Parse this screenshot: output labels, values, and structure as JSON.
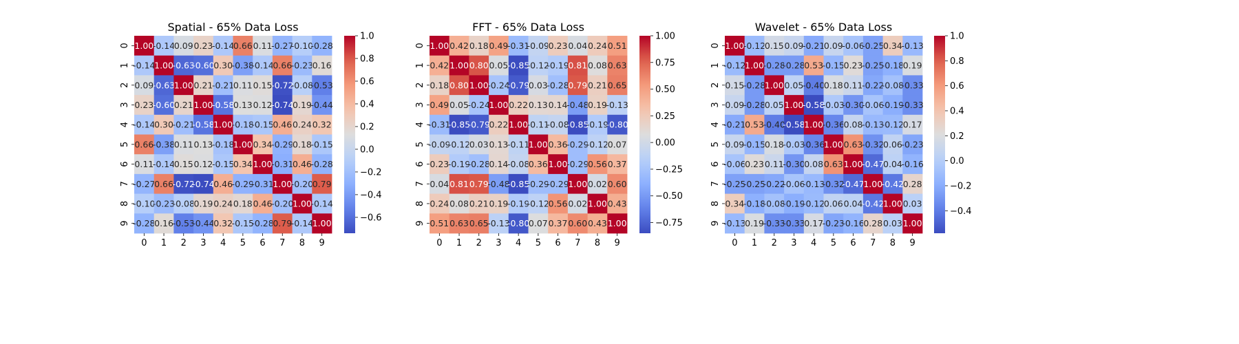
{
  "chart_data": [
    {
      "type": "heatmap",
      "title": "Spatial - 65% Data Loss",
      "x_categories": [
        "0",
        "1",
        "2",
        "3",
        "4",
        "5",
        "6",
        "7",
        "8",
        "9"
      ],
      "y_categories": [
        "0",
        "1",
        "2",
        "3",
        "4",
        "5",
        "6",
        "7",
        "8",
        "9"
      ],
      "values": [
        [
          1.0,
          -0.14,
          0.09,
          0.23,
          -0.14,
          0.66,
          0.11,
          -0.27,
          -0.1,
          -0.28
        ],
        [
          -0.14,
          1.0,
          -0.63,
          -0.6,
          0.3,
          -0.38,
          -0.14,
          0.66,
          -0.23,
          0.16
        ],
        [
          0.09,
          -0.63,
          1.0,
          0.21,
          -0.21,
          0.11,
          0.15,
          -0.72,
          -0.08,
          -0.53
        ],
        [
          0.23,
          -0.6,
          0.21,
          1.0,
          -0.58,
          0.13,
          0.12,
          -0.74,
          0.19,
          -0.44
        ],
        [
          -0.14,
          0.3,
          -0.21,
          -0.58,
          1.0,
          -0.18,
          -0.15,
          0.46,
          0.24,
          0.32
        ],
        [
          0.66,
          -0.38,
          0.11,
          0.13,
          -0.18,
          1.0,
          0.34,
          -0.29,
          0.18,
          -0.15
        ],
        [
          0.11,
          -0.14,
          0.15,
          0.12,
          -0.15,
          0.34,
          1.0,
          -0.31,
          0.46,
          -0.28
        ],
        [
          -0.27,
          0.66,
          -0.72,
          -0.74,
          0.46,
          -0.29,
          -0.31,
          1.0,
          -0.2,
          0.79
        ],
        [
          -0.1,
          -0.23,
          -0.08,
          0.19,
          0.24,
          0.18,
          0.46,
          -0.2,
          1.0,
          -0.14
        ],
        [
          -0.28,
          0.16,
          -0.53,
          -0.44,
          0.32,
          -0.15,
          -0.28,
          0.79,
          -0.14,
          1.0
        ]
      ],
      "colorscale": "coolwarm",
      "vmin": -0.74,
      "vmax": 1.0,
      "colorbar_ticks": [
        -0.6,
        -0.4,
        -0.2,
        0.0,
        0.2,
        0.4,
        0.6,
        0.8,
        1.0
      ],
      "colorbar_tick_labels": [
        "−0.6",
        "−0.4",
        "−0.2",
        "0.0",
        "0.2",
        "0.4",
        "0.6",
        "0.8",
        "1.0"
      ]
    },
    {
      "type": "heatmap",
      "title": "FFT - 65% Data Loss",
      "x_categories": [
        "0",
        "1",
        "2",
        "3",
        "4",
        "5",
        "6",
        "7",
        "8",
        "9"
      ],
      "y_categories": [
        "0",
        "1",
        "2",
        "3",
        "4",
        "5",
        "6",
        "7",
        "8",
        "9"
      ],
      "values": [
        [
          1.0,
          0.42,
          0.18,
          0.49,
          -0.31,
          -0.09,
          0.23,
          0.04,
          0.24,
          0.51
        ],
        [
          0.42,
          1.0,
          0.8,
          0.05,
          -0.85,
          -0.12,
          -0.19,
          0.81,
          0.08,
          0.63
        ],
        [
          0.18,
          0.8,
          1.0,
          -0.24,
          -0.79,
          0.03,
          -0.28,
          0.79,
          0.21,
          0.65
        ],
        [
          0.49,
          0.05,
          -0.24,
          1.0,
          0.22,
          0.13,
          0.14,
          -0.48,
          0.19,
          -0.13
        ],
        [
          -0.31,
          -0.85,
          -0.79,
          0.22,
          1.0,
          -0.11,
          -0.08,
          -0.85,
          -0.19,
          -0.8
        ],
        [
          -0.09,
          -0.12,
          0.03,
          0.13,
          -0.11,
          1.0,
          0.36,
          -0.29,
          -0.12,
          0.07
        ],
        [
          0.23,
          -0.19,
          -0.28,
          0.14,
          -0.08,
          0.36,
          1.0,
          -0.29,
          0.56,
          0.37
        ],
        [
          0.04,
          0.81,
          0.79,
          -0.48,
          -0.85,
          -0.29,
          -0.29,
          1.0,
          0.02,
          0.6
        ],
        [
          0.24,
          0.08,
          0.21,
          0.19,
          -0.19,
          -0.12,
          0.56,
          0.02,
          1.0,
          0.43
        ],
        [
          0.51,
          0.63,
          0.65,
          -0.13,
          -0.8,
          0.07,
          0.37,
          0.6,
          0.43,
          1.0
        ]
      ],
      "colorscale": "coolwarm",
      "vmin": -0.85,
      "vmax": 1.0,
      "colorbar_ticks": [
        -0.75,
        -0.5,
        -0.25,
        0.0,
        0.25,
        0.5,
        0.75,
        1.0
      ],
      "colorbar_tick_labels": [
        "−0.75",
        "−0.50",
        "−0.25",
        "0.00",
        "0.25",
        "0.50",
        "0.75",
        "1.00"
      ]
    },
    {
      "type": "heatmap",
      "title": "Wavelet - 65% Data Loss",
      "x_categories": [
        "0",
        "1",
        "2",
        "3",
        "4",
        "5",
        "6",
        "7",
        "8",
        "9"
      ],
      "y_categories": [
        "0",
        "1",
        "2",
        "3",
        "4",
        "5",
        "6",
        "7",
        "8",
        "9"
      ],
      "values": [
        [
          1.0,
          -0.12,
          0.15,
          0.09,
          -0.21,
          0.09,
          -0.06,
          -0.25,
          0.34,
          -0.13
        ],
        [
          -0.12,
          1.0,
          -0.28,
          -0.28,
          0.53,
          -0.15,
          0.23,
          -0.25,
          -0.18,
          0.19
        ],
        [
          0.15,
          -0.28,
          1.0,
          0.05,
          -0.4,
          0.18,
          0.11,
          -0.22,
          -0.08,
          -0.33
        ],
        [
          0.09,
          -0.28,
          0.05,
          1.0,
          -0.58,
          -0.03,
          -0.3,
          -0.06,
          -0.19,
          -0.33
        ],
        [
          -0.21,
          0.53,
          -0.4,
          -0.58,
          1.0,
          -0.36,
          0.08,
          -0.13,
          -0.12,
          0.17
        ],
        [
          0.09,
          -0.15,
          0.18,
          -0.03,
          -0.36,
          1.0,
          0.63,
          -0.32,
          0.06,
          -0.23
        ],
        [
          -0.06,
          0.23,
          0.11,
          -0.3,
          0.08,
          0.63,
          1.0,
          -0.47,
          0.04,
          -0.16
        ],
        [
          -0.25,
          -0.25,
          -0.22,
          -0.06,
          -0.13,
          -0.32,
          -0.47,
          1.0,
          -0.42,
          0.28
        ],
        [
          0.34,
          -0.18,
          -0.08,
          -0.19,
          -0.12,
          0.06,
          0.04,
          -0.42,
          1.0,
          0.03
        ],
        [
          -0.13,
          0.19,
          -0.33,
          -0.33,
          0.17,
          -0.23,
          -0.16,
          0.28,
          0.03,
          1.0
        ]
      ],
      "colorscale": "coolwarm",
      "vmin": -0.58,
      "vmax": 1.0,
      "colorbar_ticks": [
        -0.4,
        -0.2,
        0.0,
        0.2,
        0.4,
        0.6,
        0.8,
        1.0
      ],
      "colorbar_tick_labels": [
        "−0.4",
        "−0.2",
        "0.0",
        "0.2",
        "0.4",
        "0.6",
        "0.8",
        "1.0"
      ]
    }
  ]
}
